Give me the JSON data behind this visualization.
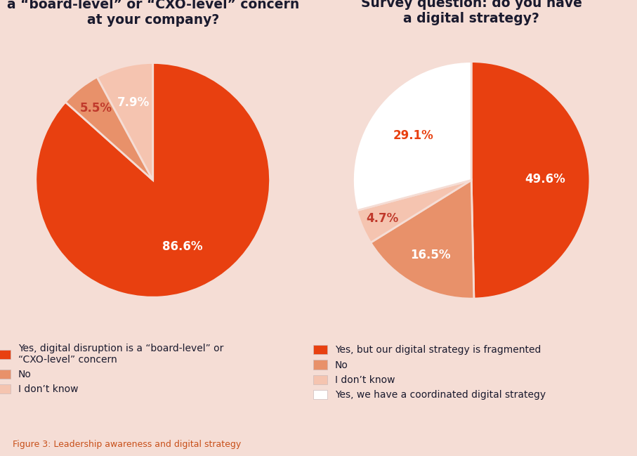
{
  "background_color": "#f5ddd5",
  "title_color": "#1a1a2e",
  "label_fontsize": 12,
  "title_fontsize": 13.5,
  "legend_fontsize": 10,
  "figure_caption": "Figure 3: Leadership awareness and digital strategy",
  "chart1": {
    "title": "Survey question: Is digital disruption\na “board-level” or “CXO-level” concern\nat your company?",
    "values": [
      86.6,
      5.5,
      7.9
    ],
    "colors": [
      "#e84010",
      "#e8916a",
      "#f5c4b0"
    ],
    "label_colors": [
      "white",
      "#c0392b",
      "white"
    ],
    "labels": [
      "86.6%",
      "5.5%",
      "7.9%"
    ],
    "startangle": 90,
    "label_radii": [
      0.62,
      0.78,
      0.68
    ],
    "legend_labels": [
      "Yes, digital disruption is a “board-level” or\n“CXO-level” concern",
      "No",
      "I don’t know"
    ]
  },
  "chart2": {
    "title": "Survey question: do you have\na digital strategy?",
    "values": [
      49.6,
      16.5,
      4.7,
      29.1
    ],
    "colors": [
      "#e84010",
      "#e8916a",
      "#f5c4b0",
      "#ffffff"
    ],
    "label_colors": [
      "white",
      "white",
      "#c0392b",
      "#e84010"
    ],
    "labels": [
      "49.6%",
      "16.5%",
      "4.7%",
      "29.1%"
    ],
    "startangle": 90,
    "label_radii": [
      0.62,
      0.72,
      0.82,
      0.62
    ],
    "legend_labels": [
      "Yes, but our digital strategy is fragmented",
      "No",
      "I don’t know",
      "Yes, we have a coordinated digital strategy"
    ]
  }
}
